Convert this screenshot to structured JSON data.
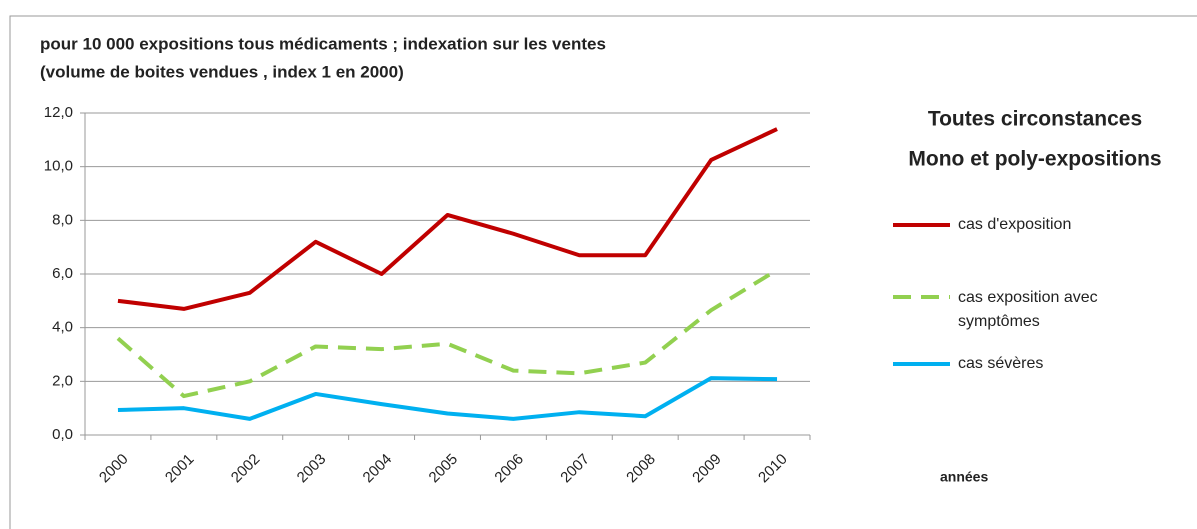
{
  "chart_data": {
    "type": "line",
    "title": "pour 10 000 expositions tous médicaments ; indexation sur les ventes",
    "subtitle": "(volume de boites vendues , index 1 en 2000)",
    "annotations": [
      "Toutes circonstances",
      "Mono et poly-expositions"
    ],
    "x_label": "années",
    "categories": [
      "2000",
      "2001",
      "2002",
      "2003",
      "2004",
      "2005",
      "2006",
      "2007",
      "2008",
      "2009",
      "2010"
    ],
    "series": [
      {
        "name": "cas d'exposition",
        "color": "#c00000",
        "dash": false,
        "values": [
          5.0,
          4.7,
          5.3,
          7.2,
          6.0,
          8.2,
          7.5,
          6.7,
          6.7,
          10.25,
          11.4
        ]
      },
      {
        "name": "cas exposition avec symptômes",
        "color": "#92d050",
        "dash": true,
        "values": [
          3.6,
          1.45,
          2.0,
          3.3,
          3.2,
          3.4,
          2.4,
          2.3,
          2.7,
          4.65,
          6.15
        ]
      },
      {
        "name": "cas sévères",
        "color": "#00b0f0",
        "dash": false,
        "values": [
          0.93,
          1.0,
          0.6,
          1.53,
          1.15,
          0.8,
          0.6,
          0.85,
          0.7,
          2.12,
          2.08
        ]
      }
    ],
    "ylim": [
      0,
      12
    ],
    "yticks": [
      {
        "value": 0,
        "label": "0,0"
      },
      {
        "value": 2,
        "label": "2,0"
      },
      {
        "value": 4,
        "label": "4,0"
      },
      {
        "value": 6,
        "label": "6,0"
      },
      {
        "value": 8,
        "label": "8,0"
      },
      {
        "value": 10,
        "label": "10,0"
      },
      {
        "value": 12,
        "label": "12,0"
      }
    ],
    "grid": true
  }
}
